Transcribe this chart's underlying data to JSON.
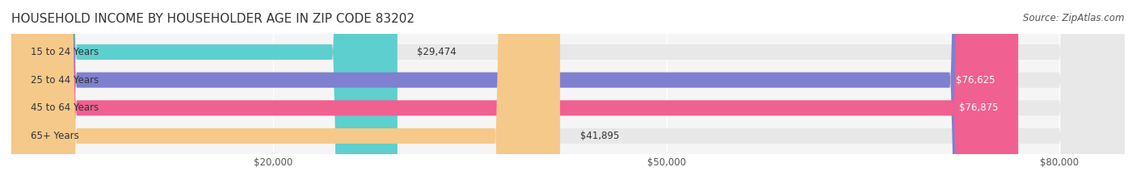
{
  "title": "HOUSEHOLD INCOME BY HOUSEHOLDER AGE IN ZIP CODE 83202",
  "source": "Source: ZipAtlas.com",
  "categories": [
    "15 to 24 Years",
    "25 to 44 Years",
    "45 to 64 Years",
    "65+ Years"
  ],
  "values": [
    29474,
    76625,
    76875,
    41895
  ],
  "bar_colors": [
    "#5ecfcf",
    "#8080d0",
    "#f06090",
    "#f5c98a"
  ],
  "bar_labels": [
    "$29,474",
    "$76,625",
    "$76,875",
    "$41,895"
  ],
  "label_colors": [
    "#333333",
    "#ffffff",
    "#ffffff",
    "#333333"
  ],
  "xmin": 0,
  "xmax": 85000,
  "xticks": [
    20000,
    50000,
    80000
  ],
  "xticklabels": [
    "$20,000",
    "$50,000",
    "$80,000"
  ],
  "background_color": "#f5f5f5",
  "bar_bg_color": "#e8e8e8",
  "title_fontsize": 11,
  "source_fontsize": 8.5,
  "label_fontsize": 8.5,
  "value_fontsize": 8.5
}
